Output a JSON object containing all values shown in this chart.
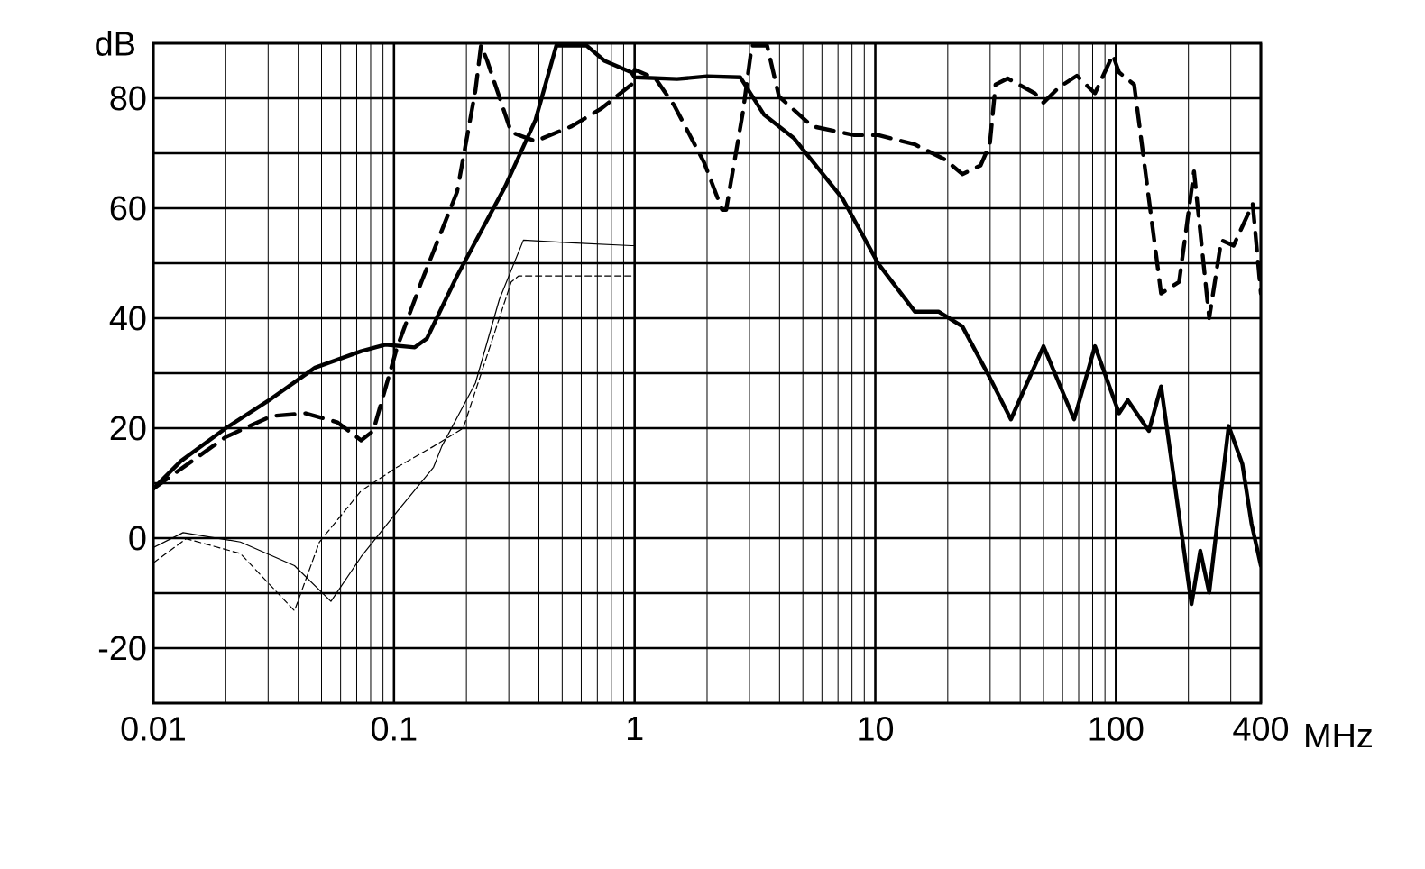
{
  "chart_data": {
    "type": "line",
    "xlabel": "MHz",
    "ylabel": "dB",
    "log": "x",
    "grid": true,
    "xlim": [
      0.01,
      400
    ],
    "ylim": [
      -30,
      90
    ],
    "xticks": [
      0.01,
      0.1,
      1,
      10,
      100,
      400
    ],
    "yticks": [
      -20,
      {
        "value": -10,
        "label": null
      },
      0,
      {
        "value": 10,
        "label": null
      },
      20,
      {
        "value": 30,
        "label": null
      },
      40,
      {
        "value": 50,
        "label": null
      },
      60,
      {
        "value": 70,
        "label": null
      },
      80
    ],
    "series": [
      {
        "color": "#000000",
        "line_style": "solid",
        "x": [
          0.01,
          0.013,
          0.02,
          0.031,
          0.047,
          0.073,
          0.092,
          0.122,
          0.137,
          0.183,
          0.29,
          0.387,
          0.473,
          0.63,
          0.75,
          0.97,
          1.0,
          1.5,
          2.0,
          2.75,
          3.45,
          4.6,
          7.3,
          10.3,
          14.6,
          18.3,
          23,
          29.9,
          36.6,
          50,
          67,
          81.8,
          103,
          112,
          137,
          154,
          206,
          224,
          244,
          294,
          335,
          366,
          400
        ],
        "values": [
          9,
          14,
          20,
          25.4,
          31,
          34,
          35.2,
          34.7,
          36.3,
          47.7,
          64,
          76,
          89.6,
          89.6,
          86.8,
          84.7,
          83.8,
          83.5,
          84,
          83.8,
          77,
          72.7,
          61.8,
          49.9,
          41.2,
          41.2,
          38.5,
          29.2,
          21.6,
          34.9,
          21.6,
          34.9,
          22.7,
          25.1,
          19.5,
          27.6,
          -12,
          -2.3,
          -9.9,
          20.4,
          13.5,
          2.6,
          -5
        ]
      },
      {
        "color": "#000000",
        "line_style": "dashed",
        "x": [
          0.01,
          0.02,
          0.031,
          0.043,
          0.058,
          0.073,
          0.082,
          0.103,
          0.13,
          0.183,
          0.218,
          0.23,
          0.244,
          0.307,
          0.387,
          0.547,
          0.72,
          0.97,
          1.0,
          1.22,
          1.46,
          1.94,
          2.31,
          2.4,
          2.82,
          3.07,
          3.55,
          3.98,
          5.47,
          8.18,
          10.3,
          14.6,
          19.4,
          23,
          27.4,
          29.9,
          31.6,
          35.5,
          46,
          50,
          58,
          68.8,
          81.8,
          97,
          103,
          119,
          154,
          183,
          211,
          244,
          274,
          308,
          370,
          400
        ],
        "values": [
          9,
          18.4,
          22.2,
          22.7,
          21.1,
          17.8,
          19.5,
          34.7,
          46.6,
          63,
          81.4,
          89.6,
          86.8,
          73.8,
          72.2,
          74.9,
          78,
          82.5,
          85.2,
          83.6,
          78.7,
          68.4,
          59.7,
          59.7,
          77.6,
          89.6,
          89.6,
          80.3,
          74.9,
          73.3,
          73.3,
          71.6,
          68.9,
          66.2,
          67.8,
          71.6,
          82.5,
          83.6,
          80.9,
          79.2,
          82,
          84.1,
          80.9,
          87.9,
          84.7,
          82.5,
          44.5,
          46.6,
          66.7,
          40,
          54.2,
          53.2,
          60.8,
          44.5
        ]
      },
      {
        "color": "#000000",
        "line_style": "solid",
        "x": [
          0.01,
          0.0133,
          0.023,
          0.0386,
          0.0547,
          0.073,
          0.103,
          0.146,
          0.158,
          0.218,
          0.274,
          0.345,
          0.547,
          0.97,
          1.0
        ],
        "values": [
          -1.7,
          1.0,
          -0.7,
          -5,
          -11.5,
          -3.4,
          4.8,
          12.9,
          16.7,
          28.2,
          43.4,
          54.2,
          53.7,
          53.2,
          53.2
        ]
      },
      {
        "color": "#000000",
        "line_style": "dashed",
        "x": [
          0.01,
          0.0137,
          0.023,
          0.0386,
          0.049,
          0.073,
          0.103,
          0.146,
          0.194,
          0.307,
          0.33,
          0.97,
          1.0
        ],
        "values": [
          -4.5,
          -0.1,
          -2.8,
          -13.2,
          -0.7,
          8.6,
          12.9,
          16.7,
          20,
          46.6,
          47.7,
          47.7,
          47.7
        ]
      }
    ]
  }
}
